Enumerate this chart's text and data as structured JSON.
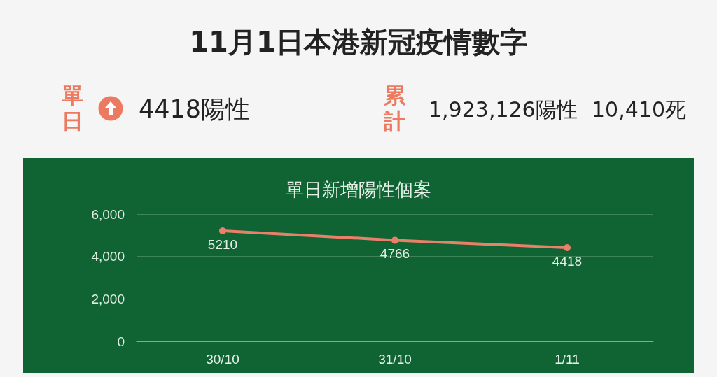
{
  "chart_data": [
    {
      "type": "other",
      "title": "11月1日本港新冠疫情數字",
      "annotations": [
        "單日",
        "4418陽性",
        "累計",
        "1,923,126陽性",
        "10,410死"
      ]
    },
    {
      "type": "line",
      "title": "單日新增陽性個案",
      "categories": [
        "30/10",
        "31/10",
        "1/11"
      ],
      "values": [
        5210,
        4766,
        4418
      ],
      "color": "#e8806a",
      "ylim": [
        0,
        6000
      ],
      "yticks": [
        0,
        {
          "value": 2000,
          "label": "2,000"
        },
        {
          "value": 4000,
          "label": "4,000"
        },
        {
          "value": 6000,
          "label": "6,000"
        }
      ],
      "grid": "y",
      "data_labels": true,
      "marker": "circle"
    }
  ]
}
